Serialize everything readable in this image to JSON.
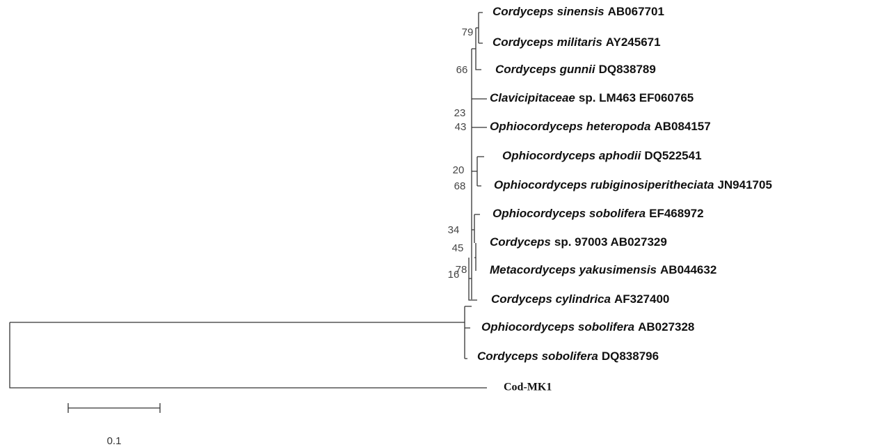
{
  "leaves": [
    {
      "italic": "Cordyceps sinensis",
      "plain": "AB067701"
    },
    {
      "italic": "Cordyceps militaris",
      "plain": "AY245671"
    },
    {
      "italic": "Cordyceps gunnii",
      "plain": "DQ838789"
    },
    {
      "italic": "Clavicipitaceae",
      "plain": "sp. LM463 EF060765"
    },
    {
      "italic": "Ophiocordyceps heteropoda",
      "plain": "AB084157"
    },
    {
      "italic": "Ophiocordyceps aphodii",
      "plain": "DQ522541"
    },
    {
      "italic": "Ophiocordyceps rubiginosiperitheciata",
      "plain": "JN941705"
    },
    {
      "italic": "Ophiocordyceps sobolifera",
      "plain": "EF468972"
    },
    {
      "italic": "Cordyceps",
      "plain": "sp. 97003 AB027329"
    },
    {
      "italic": "Metacordyceps yakusimensis",
      "plain": "AB044632"
    },
    {
      "italic": "Cordyceps cylindrica",
      "plain": "AF327400"
    },
    {
      "italic": "Ophiocordyceps sobolifera",
      "plain": "AB027328"
    },
    {
      "italic": "Cordyceps sobolifera",
      "plain": "DQ838796"
    }
  ],
  "outgroup": "Cod-MK1",
  "bootstrap": [
    79,
    66,
    23,
    43,
    20,
    68,
    34,
    45,
    78,
    16
  ],
  "scale_bar": "0.1"
}
